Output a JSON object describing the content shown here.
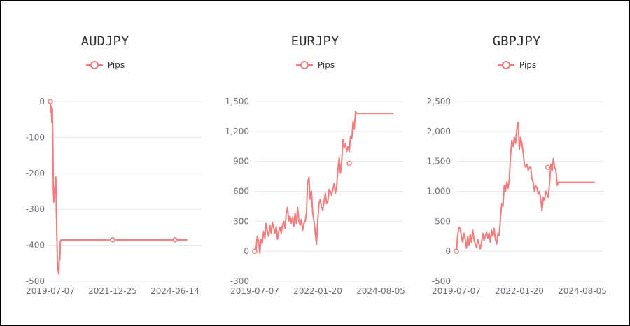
{
  "colors": {
    "series": "#f47c7c",
    "grid": "#e6e8f2",
    "axis_text": "#6e7079",
    "title": "#333333"
  },
  "legend_icon": "circle-line-marker-icon",
  "chart_data": [
    {
      "type": "line",
      "title": "AUDJPY",
      "series": [
        {
          "name": "Pips"
        }
      ],
      "ylim": [
        -500,
        0
      ],
      "yticks": [
        "0",
        "-100",
        "-200",
        "-300",
        "-400",
        "-500"
      ],
      "yticks_values": [
        0,
        -100,
        -200,
        -300,
        -400,
        -500
      ],
      "xticks": [
        "2019-07-07",
        "2021-12-25",
        "2024-06-14"
      ],
      "xticks_pos": [
        0,
        0.5,
        1
      ],
      "points": [
        [
          0,
          0
        ],
        [
          0.004,
          -30
        ],
        [
          0.008,
          -15
        ],
        [
          0.012,
          -60
        ],
        [
          0.016,
          -20
        ],
        [
          0.02,
          -120
        ],
        [
          0.024,
          -250
        ],
        [
          0.028,
          -280
        ],
        [
          0.032,
          -240
        ],
        [
          0.036,
          -260
        ],
        [
          0.04,
          -220
        ],
        [
          0.044,
          -210
        ],
        [
          0.048,
          -300
        ],
        [
          0.052,
          -380
        ],
        [
          0.056,
          -440
        ],
        [
          0.06,
          -460
        ],
        [
          0.064,
          -475
        ],
        [
          0.068,
          -480
        ],
        [
          0.072,
          -430
        ],
        [
          0.076,
          -440
        ],
        [
          0.08,
          -390
        ],
        [
          0.084,
          -385
        ],
        [
          1.1,
          -385
        ]
      ],
      "markers": [
        [
          0,
          0
        ],
        [
          0.5,
          -385
        ],
        [
          1.0,
          -385
        ]
      ],
      "grid": true
    },
    {
      "type": "line",
      "title": "EURJPY",
      "series": [
        {
          "name": "Pips"
        }
      ],
      "ylim": [
        -300,
        1500
      ],
      "yticks": [
        "1,500",
        "1,200",
        "900",
        "600",
        "300",
        "0",
        "-300"
      ],
      "yticks_values": [
        1500,
        1200,
        900,
        600,
        300,
        0,
        -300
      ],
      "xticks": [
        "2019-07-07",
        "2022-01-20",
        "2024-08-05"
      ],
      "xticks_pos": [
        0,
        0.5,
        1
      ],
      "points": [
        [
          0,
          0
        ],
        [
          0.01,
          20
        ],
        [
          0.02,
          150
        ],
        [
          0.03,
          100
        ],
        [
          0.04,
          -20
        ],
        [
          0.05,
          120
        ],
        [
          0.06,
          80
        ],
        [
          0.07,
          200
        ],
        [
          0.08,
          130
        ],
        [
          0.09,
          280
        ],
        [
          0.1,
          200
        ],
        [
          0.11,
          150
        ],
        [
          0.12,
          260
        ],
        [
          0.13,
          180
        ],
        [
          0.14,
          290
        ],
        [
          0.15,
          230
        ],
        [
          0.16,
          180
        ],
        [
          0.17,
          250
        ],
        [
          0.18,
          120
        ],
        [
          0.19,
          200
        ],
        [
          0.2,
          240
        ],
        [
          0.21,
          180
        ],
        [
          0.22,
          260
        ],
        [
          0.23,
          300
        ],
        [
          0.24,
          230
        ],
        [
          0.25,
          380
        ],
        [
          0.26,
          440
        ],
        [
          0.27,
          300
        ],
        [
          0.28,
          350
        ],
        [
          0.29,
          280
        ],
        [
          0.3,
          340
        ],
        [
          0.31,
          250
        ],
        [
          0.32,
          380
        ],
        [
          0.33,
          280
        ],
        [
          0.34,
          440
        ],
        [
          0.35,
          300
        ],
        [
          0.36,
          260
        ],
        [
          0.37,
          320
        ],
        [
          0.38,
          210
        ],
        [
          0.39,
          280
        ],
        [
          0.4,
          300
        ],
        [
          0.41,
          380
        ],
        [
          0.42,
          690
        ],
        [
          0.43,
          740
        ],
        [
          0.44,
          520
        ],
        [
          0.45,
          600
        ],
        [
          0.46,
          380
        ],
        [
          0.47,
          300
        ],
        [
          0.48,
          180
        ],
        [
          0.49,
          70
        ],
        [
          0.5,
          300
        ],
        [
          0.51,
          480
        ],
        [
          0.52,
          520
        ],
        [
          0.53,
          440
        ],
        [
          0.54,
          410
        ],
        [
          0.55,
          500
        ],
        [
          0.56,
          580
        ],
        [
          0.57,
          480
        ],
        [
          0.58,
          500
        ],
        [
          0.59,
          620
        ],
        [
          0.6,
          600
        ],
        [
          0.61,
          560
        ],
        [
          0.62,
          620
        ],
        [
          0.63,
          680
        ],
        [
          0.64,
          580
        ],
        [
          0.65,
          650
        ],
        [
          0.66,
          820
        ],
        [
          0.67,
          940
        ],
        [
          0.68,
          780
        ],
        [
          0.69,
          900
        ],
        [
          0.7,
          1120
        ],
        [
          0.71,
          1040
        ],
        [
          0.72,
          1080
        ],
        [
          0.73,
          1000
        ],
        [
          0.74,
          1050
        ],
        [
          0.75,
          1000
        ],
        [
          0.76,
          1150
        ],
        [
          0.77,
          1130
        ],
        [
          0.78,
          1300
        ],
        [
          0.79,
          1220
        ],
        [
          0.8,
          1400
        ],
        [
          0.81,
          1380
        ],
        [
          1.1,
          1380
        ]
      ],
      "markers": [
        [
          0,
          0
        ],
        [
          0.75,
          880
        ]
      ],
      "grid": true
    },
    {
      "type": "line",
      "title": "GBPJPY",
      "series": [
        {
          "name": "Pips"
        }
      ],
      "ylim": [
        -500,
        2500
      ],
      "yticks": [
        "2,500",
        "2,000",
        "1,500",
        "1,000",
        "500",
        "0",
        "-500"
      ],
      "yticks_values": [
        2500,
        2000,
        1500,
        1000,
        500,
        0,
        -500
      ],
      "xticks": [
        "2019-07-07",
        "2022-01-20",
        "2024-08-05"
      ],
      "xticks_pos": [
        0,
        0.5,
        1
      ],
      "points": [
        [
          0,
          0
        ],
        [
          0.01,
          250
        ],
        [
          0.02,
          400
        ],
        [
          0.03,
          380
        ],
        [
          0.04,
          250
        ],
        [
          0.05,
          150
        ],
        [
          0.06,
          300
        ],
        [
          0.07,
          200
        ],
        [
          0.08,
          50
        ],
        [
          0.09,
          250
        ],
        [
          0.1,
          100
        ],
        [
          0.11,
          280
        ],
        [
          0.12,
          150
        ],
        [
          0.13,
          350
        ],
        [
          0.14,
          200
        ],
        [
          0.15,
          120
        ],
        [
          0.16,
          60
        ],
        [
          0.17,
          200
        ],
        [
          0.18,
          120
        ],
        [
          0.19,
          40
        ],
        [
          0.2,
          150
        ],
        [
          0.21,
          300
        ],
        [
          0.22,
          180
        ],
        [
          0.23,
          260
        ],
        [
          0.24,
          320
        ],
        [
          0.25,
          220
        ],
        [
          0.26,
          300
        ],
        [
          0.27,
          150
        ],
        [
          0.28,
          350
        ],
        [
          0.29,
          250
        ],
        [
          0.3,
          380
        ],
        [
          0.31,
          200
        ],
        [
          0.32,
          120
        ],
        [
          0.33,
          300
        ],
        [
          0.34,
          260
        ],
        [
          0.35,
          550
        ],
        [
          0.36,
          800
        ],
        [
          0.37,
          750
        ],
        [
          0.38,
          1100
        ],
        [
          0.39,
          1000
        ],
        [
          0.4,
          1150
        ],
        [
          0.41,
          1050
        ],
        [
          0.42,
          1200
        ],
        [
          0.43,
          1600
        ],
        [
          0.44,
          1850
        ],
        [
          0.45,
          1750
        ],
        [
          0.46,
          1900
        ],
        [
          0.47,
          1800
        ],
        [
          0.48,
          2050
        ],
        [
          0.49,
          2150
        ],
        [
          0.5,
          1700
        ],
        [
          0.51,
          1900
        ],
        [
          0.52,
          1800
        ],
        [
          0.53,
          1650
        ],
        [
          0.54,
          1450
        ],
        [
          0.55,
          1400
        ],
        [
          0.56,
          1450
        ],
        [
          0.57,
          1350
        ],
        [
          0.58,
          1400
        ],
        [
          0.59,
          1400
        ],
        [
          0.6,
          1200
        ],
        [
          0.61,
          1150
        ],
        [
          0.62,
          1000
        ],
        [
          0.63,
          1100
        ],
        [
          0.64,
          1050
        ],
        [
          0.65,
          950
        ],
        [
          0.66,
          1000
        ],
        [
          0.67,
          850
        ],
        [
          0.68,
          680
        ],
        [
          0.69,
          900
        ],
        [
          0.7,
          850
        ],
        [
          0.71,
          1000
        ],
        [
          0.72,
          950
        ],
        [
          0.73,
          900
        ],
        [
          0.74,
          1150
        ],
        [
          0.75,
          1450
        ],
        [
          0.76,
          1350
        ],
        [
          0.77,
          1550
        ],
        [
          0.78,
          1400
        ],
        [
          0.79,
          1350
        ],
        [
          0.8,
          1100
        ],
        [
          0.81,
          1150
        ],
        [
          0.82,
          1150
        ],
        [
          1.1,
          1150
        ]
      ],
      "markers": [
        [
          0,
          0
        ],
        [
          0.725,
          1400
        ]
      ],
      "grid": true
    }
  ]
}
